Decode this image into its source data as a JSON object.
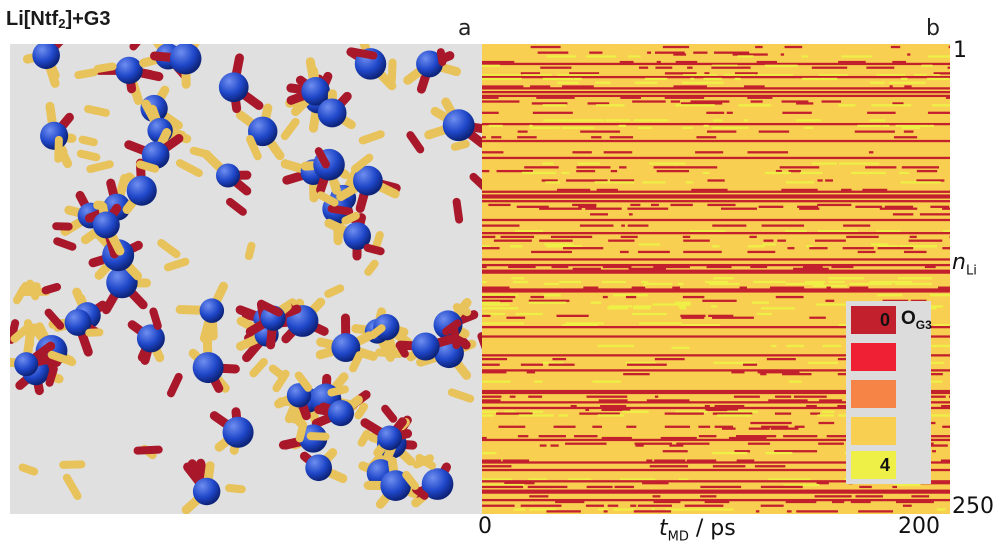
{
  "figure_title": {
    "main": "Li[Ntf",
    "subscript": "2",
    "suffix": "]+G3"
  },
  "panel_a": {
    "label": "a"
  },
  "panel_b": {
    "label": "b",
    "x_axis": {
      "var": "t",
      "sub": "MD",
      "unit": " / ps",
      "min_label": "0",
      "max_label": "200"
    },
    "y_axis": {
      "var": "n",
      "sub": "Li",
      "top_label": "1",
      "bottom_label": "250"
    },
    "legend": {
      "title_main": "O",
      "title_sub": "G3",
      "levels": [
        {
          "value": 0,
          "label": "0",
          "color": "#c3202e"
        },
        {
          "value": 1,
          "label": "",
          "color": "#f02034"
        },
        {
          "value": 2,
          "label": "",
          "color": "#f68447"
        },
        {
          "value": 3,
          "label": "",
          "color": "#f8cf50"
        },
        {
          "value": 4,
          "label": "4",
          "color": "#eef047"
        }
      ]
    }
  },
  "chart_data": {
    "type": "heatmap",
    "x_range": [
      0,
      200
    ],
    "y_range": [
      1,
      250
    ],
    "value_range": [
      0,
      4
    ]
  },
  "colors": {
    "molecule_blue": "#1f47c9",
    "molecule_red": "#a8182a",
    "molecule_yellow": "#e8c25a",
    "background_grey": "#e0e0e0"
  }
}
